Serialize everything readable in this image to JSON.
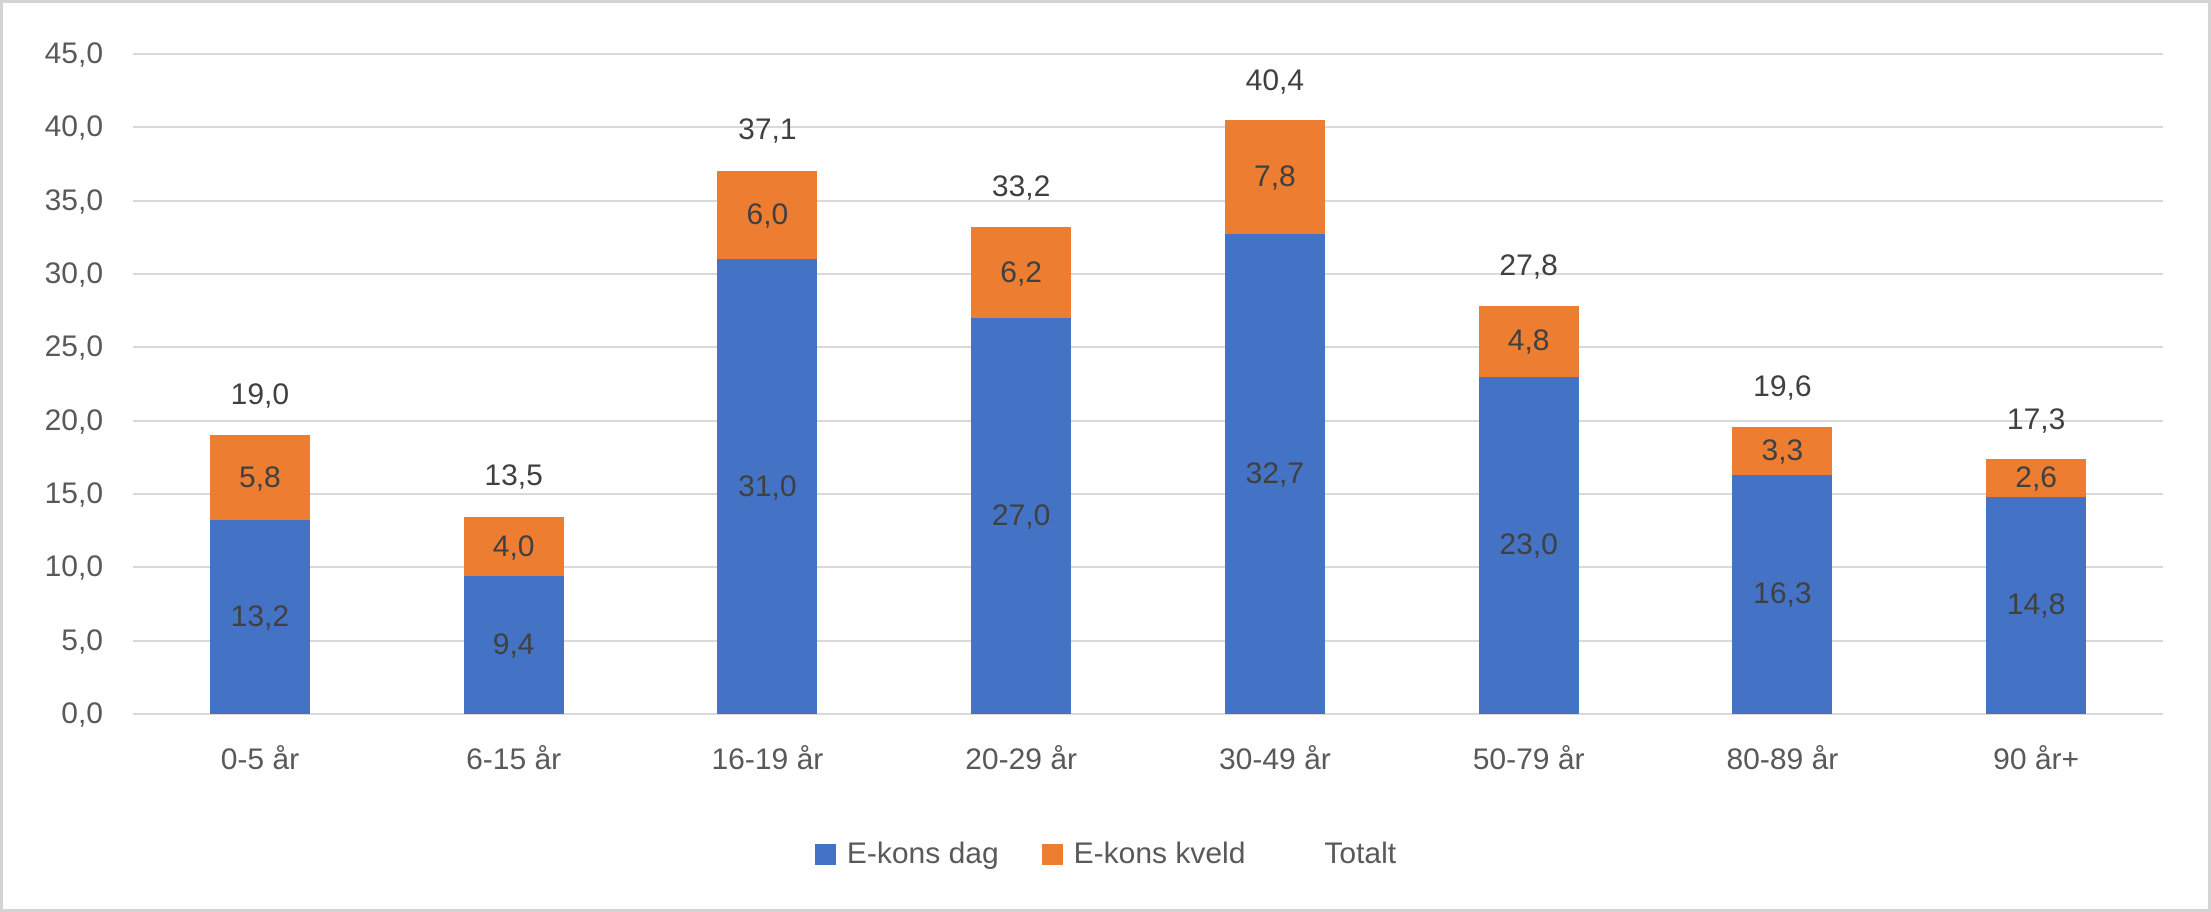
{
  "chart_data": {
    "type": "bar",
    "stacked": true,
    "title": "",
    "xlabel": "",
    "ylabel": "",
    "grid": true,
    "legend_position": "bottom",
    "categories": [
      "0-5 år",
      "6-15 år",
      "16-19 år",
      "20-29 år",
      "30-49 år",
      "50-79 år",
      "80-89 år",
      "90 år+"
    ],
    "series": [
      {
        "name": "E-kons dag",
        "color": "#4472c4",
        "values": [
          13.2,
          9.4,
          31.0,
          27.0,
          32.7,
          23.0,
          16.3,
          14.8
        ],
        "labels": [
          "13,2",
          "9,4",
          "31,0",
          "27,0",
          "32,7",
          "23,0",
          "16,3",
          "14,8"
        ]
      },
      {
        "name": "E-kons kveld",
        "color": "#ed7d31",
        "values": [
          5.8,
          4.0,
          6.0,
          6.2,
          7.8,
          4.8,
          3.3,
          2.6
        ],
        "labels": [
          "5,8",
          "4,0",
          "6,0",
          "6,2",
          "7,8",
          "4,8",
          "3,3",
          "2,6"
        ]
      }
    ],
    "totals": {
      "name": "Totalt",
      "values": [
        19.0,
        13.5,
        37.1,
        33.2,
        40.4,
        27.8,
        19.6,
        17.3
      ],
      "labels": [
        "19,0",
        "13,5",
        "37,1",
        "33,2",
        "40,4",
        "27,8",
        "19,6",
        "17,3"
      ]
    },
    "y_axis": {
      "min": 0,
      "max": 45,
      "step": 5,
      "tick_labels": [
        "0,0",
        "5,0",
        "10,0",
        "15,0",
        "20,0",
        "25,0",
        "30,0",
        "35,0",
        "40,0",
        "45,0"
      ]
    },
    "legend": [
      {
        "label": "E-kons dag",
        "swatch_color": "#4472c4"
      },
      {
        "label": "E-kons kveld",
        "swatch_color": "#ed7d31"
      },
      {
        "label": "Totalt",
        "swatch_color": "none"
      }
    ],
    "colors": {
      "gridline": "#d9d9d9",
      "axis_text": "#595959",
      "data_label_text": "#404040",
      "background": "#ffffff",
      "border": "#d4d4d4"
    }
  }
}
